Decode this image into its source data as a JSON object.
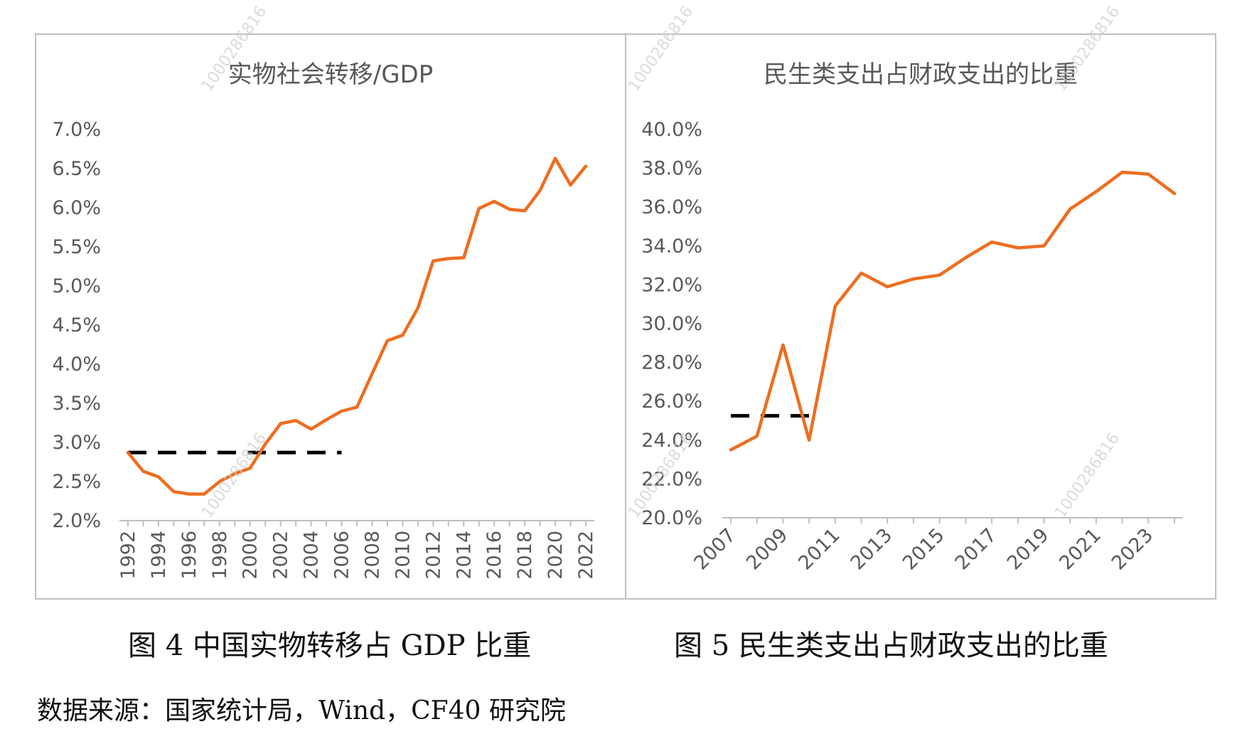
{
  "watermark": "1000286816",
  "captions": {
    "fig4": "图 4 中国实物转移占 GDP 比重",
    "fig5": "图 5 民生类支出占财政支出的比重"
  },
  "source": "数据来源：国家统计局，Wind，CF40 研究院",
  "colors": {
    "series": "#ED6D1F",
    "reference": "#000000",
    "axis": "#BFBFBF",
    "text": "#595959",
    "frame": "#BFBFBF"
  },
  "chart_data": [
    {
      "type": "line",
      "title": "实物社会转移/GDP",
      "grid": false,
      "ylim": [
        0.02,
        0.07
      ],
      "y_ticks": [
        "7.0%",
        "6.5%",
        "6.0%",
        "5.5%",
        "5.0%",
        "4.5%",
        "4.0%",
        "3.5%",
        "3.0%",
        "2.5%",
        "2.0%"
      ],
      "y_tick_values": [
        0.07,
        0.065,
        0.06,
        0.055,
        0.05,
        0.045,
        0.04,
        0.035,
        0.03,
        0.025,
        0.02
      ],
      "x_ticks": [
        "1992",
        "1994",
        "1996",
        "1998",
        "2000",
        "2002",
        "2004",
        "2006",
        "2008",
        "2010",
        "2012",
        "2014",
        "2016",
        "2018",
        "2020",
        "2022"
      ],
      "x": [
        1992,
        1993,
        1994,
        1995,
        1996,
        1997,
        1998,
        1999,
        2000,
        2001,
        2002,
        2003,
        2004,
        2005,
        2006,
        2007,
        2008,
        2009,
        2010,
        2011,
        2012,
        2013,
        2014,
        2015,
        2016,
        2017,
        2018,
        2019,
        2020,
        2021,
        2022
      ],
      "series": [
        {
          "values": [
            0.0287,
            0.0263,
            0.0256,
            0.0237,
            0.0234,
            0.0234,
            0.025,
            0.026,
            0.0267,
            0.0298,
            0.0324,
            0.0328,
            0.0317,
            0.0329,
            0.034,
            0.0345,
            0.0388,
            0.043,
            0.0437,
            0.0472,
            0.0532,
            0.0535,
            0.0536,
            0.0599,
            0.0608,
            0.0598,
            0.0596,
            0.0622,
            0.0663,
            0.0629,
            0.0653
          ]
        }
      ],
      "reference_line": {
        "x": [
          1992,
          2006
        ],
        "y": 0.0287,
        "style": "dashed"
      }
    },
    {
      "type": "line",
      "title": "民生类支出占财政支出的比重",
      "grid": false,
      "ylim": [
        0.2,
        0.4
      ],
      "y_ticks": [
        "40.0%",
        "38.0%",
        "36.0%",
        "34.0%",
        "32.0%",
        "30.0%",
        "28.0%",
        "26.0%",
        "24.0%",
        "22.0%",
        "20.0%"
      ],
      "y_tick_values": [
        0.4,
        0.38,
        0.36,
        0.34,
        0.32,
        0.3,
        0.28,
        0.26,
        0.24,
        0.22,
        0.2
      ],
      "x_ticks": [
        "2007",
        "2009",
        "2011",
        "2013",
        "2015",
        "2017",
        "2019",
        "2021",
        "2023"
      ],
      "x": [
        2007,
        2008,
        2009,
        2010,
        2011,
        2012,
        2013,
        2014,
        2015,
        2016,
        2017,
        2018,
        2019,
        2020,
        2021,
        2022,
        2023,
        2024
      ],
      "series": [
        {
          "values": [
            0.235,
            0.242,
            0.289,
            0.24,
            0.309,
            0.326,
            0.319,
            0.323,
            0.325,
            0.334,
            0.342,
            0.339,
            0.34,
            0.359,
            0.368,
            0.378,
            0.377,
            0.367
          ]
        }
      ],
      "reference_line": {
        "x": [
          2007,
          2010
        ],
        "y": 0.2525,
        "style": "dashed"
      }
    }
  ]
}
